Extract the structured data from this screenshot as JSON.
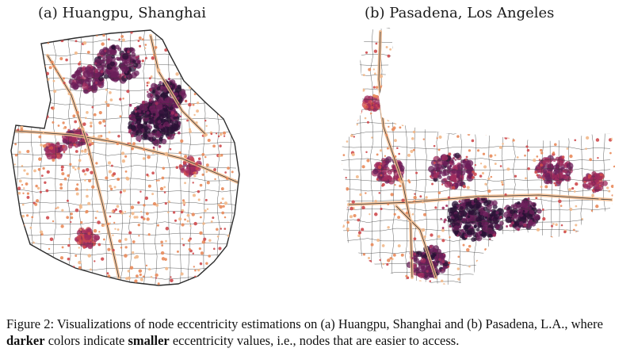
{
  "panels": [
    {
      "title": "(a) Huangpu, Shanghai"
    },
    {
      "title": "(b) Pasadena, Los Angeles"
    }
  ],
  "colors": {
    "road": "#3a3a3a",
    "dark": "#2a1236",
    "purple": "#6b1f5a",
    "magenta": "#a02c5e",
    "red": "#cf4a4e",
    "orange": "#e98a5a",
    "light": "#f2b889"
  },
  "caption": {
    "part1": "Figure 2: Visualizations of node eccentricity estimations on (a) Huangpu, Shanghai and (b) Pasadena, L.A., where ",
    "bold1": "darker",
    "part2": " colors indicate ",
    "bold2": "smaller",
    "part3": " eccentricity values, i.e., nodes that are easier to access."
  }
}
